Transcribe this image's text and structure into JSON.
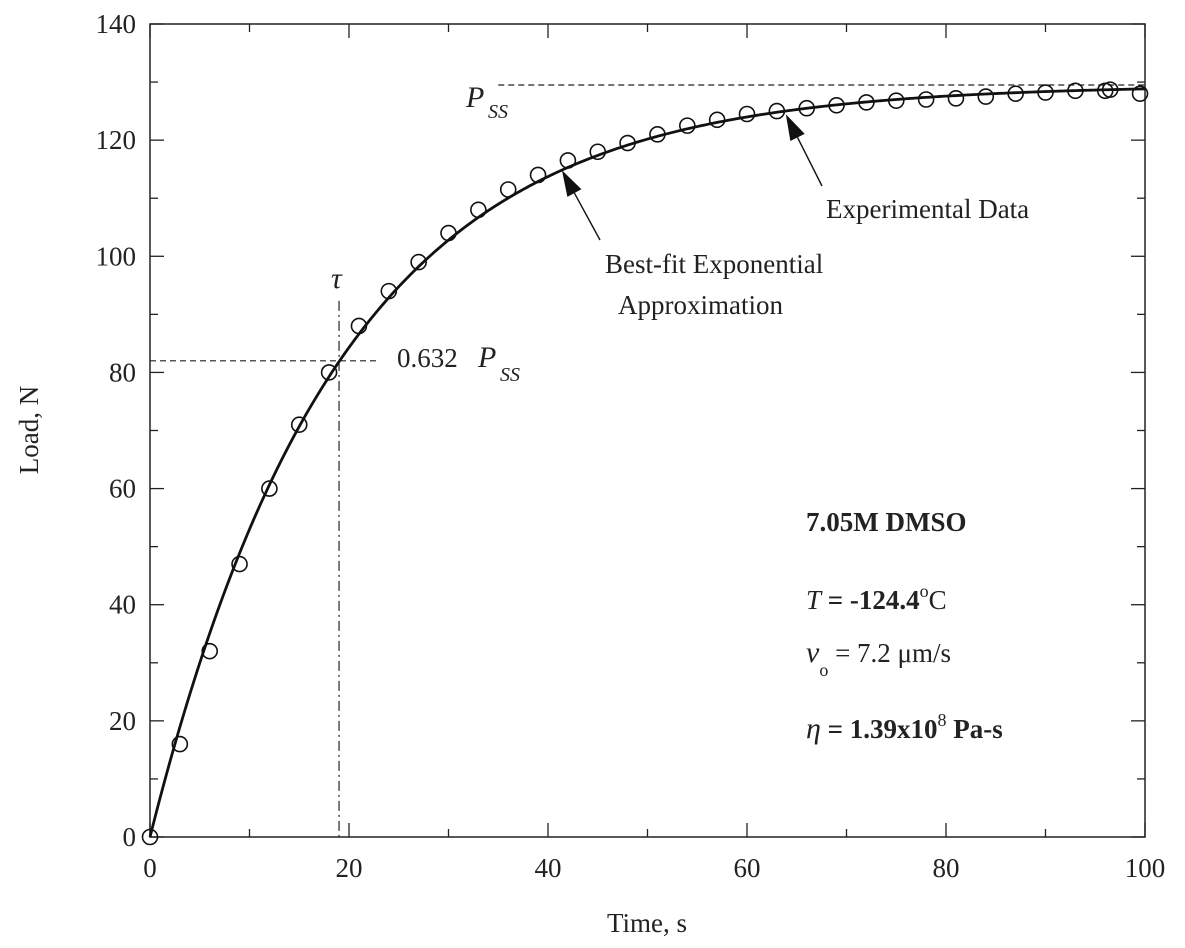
{
  "chart_data": {
    "type": "scatter",
    "title": "",
    "xlabel": "Time, s",
    "ylabel": "Load, N",
    "xlim": [
      0,
      100
    ],
    "ylim": [
      0,
      140
    ],
    "xticks": [
      "0",
      "20",
      "40",
      "60",
      "80",
      "100"
    ],
    "yticks": [
      "0",
      "20",
      "40",
      "60",
      "80",
      "100",
      "120",
      "140"
    ],
    "grid": false,
    "series": [
      {
        "name": "Experimental Data",
        "style": "open-circle",
        "x": [
          0,
          3,
          6,
          9,
          12,
          15,
          18,
          21,
          24,
          27,
          30,
          33,
          36,
          39,
          42,
          45,
          48,
          51,
          54,
          57,
          60,
          63,
          66,
          69,
          72,
          75,
          78,
          81,
          84,
          87,
          90,
          93,
          96,
          96.5,
          99.5
        ],
        "y": [
          0,
          16,
          32,
          47,
          60,
          71,
          80,
          88,
          94,
          99,
          104,
          108,
          111.5,
          114,
          116.5,
          118,
          119.5,
          121,
          122.5,
          123.5,
          124.5,
          125,
          125.5,
          126,
          126.5,
          126.8,
          127,
          127.2,
          127.5,
          128,
          128.2,
          128.5,
          128.5,
          128.7,
          128
        ]
      },
      {
        "name": "Best-fit Exponential Approximation",
        "style": "solid-line",
        "function": "P_ss * (1 - exp(-t / tau))",
        "P_ss": 129.5,
        "tau": 19
      }
    ],
    "reference_lines": {
      "pss_value": 129.5,
      "pss_line_x_start": 35,
      "p632_value": 82,
      "tau_value": 19
    },
    "annotations": {
      "pss_label": "P",
      "pss_sub": "SS",
      "p632_prefix": "0.632 ",
      "p632_label": "P",
      "p632_sub": "SS",
      "tau_label": "τ",
      "fit_label_line1": "Best-fit Exponential",
      "fit_label_line2": "Approximation",
      "exp_label": "Experimental Data",
      "fit_arrow_target": [
        41,
        115.5
      ],
      "exp_arrow_target": [
        63.5,
        125.5
      ],
      "info_line1": "7.05M DMSO",
      "info_T_sym": "T",
      "info_T_val": " = -124.4",
      "info_T_sup": "o",
      "info_T_unit": "C",
      "info_v_sym": "v",
      "info_v_sub": "o",
      "info_v_val": " = 7.2 μm/s",
      "info_eta_sym": "η",
      "info_eta_val": " =  1.39x10",
      "info_eta_sup": "8",
      "info_eta_unit": " Pa-s"
    }
  }
}
